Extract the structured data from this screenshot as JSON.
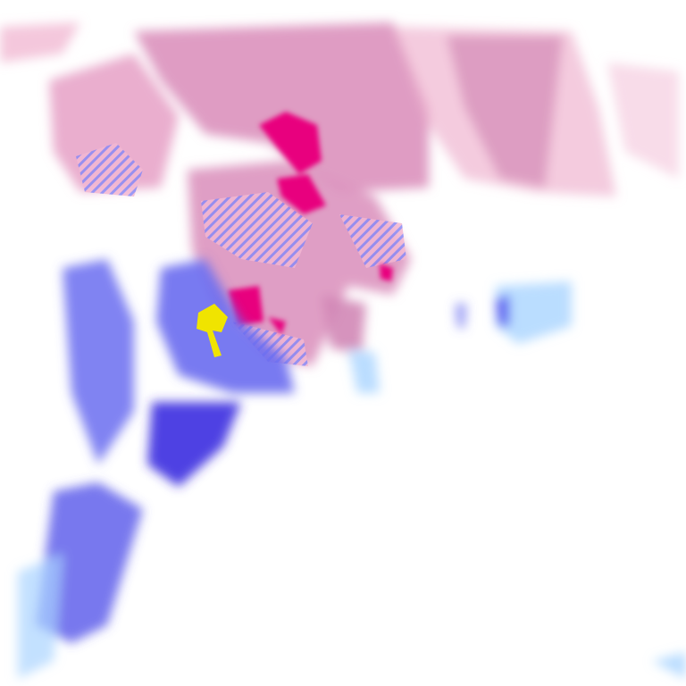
{
  "map": {
    "type": "precipitation-radar-tile",
    "colors": {
      "background": "#ffffff",
      "light_snow": "#f6c6dc",
      "moderate_snow": "#d98bb8",
      "heavy_snow": "#e8007e",
      "light_rain": "#a9d4ff",
      "moderate_rain": "#6a6cf0",
      "heavy_rain": "#3a2ee0",
      "extreme": "#f0e400",
      "mixed_hatch": "#8a8af5"
    }
  }
}
